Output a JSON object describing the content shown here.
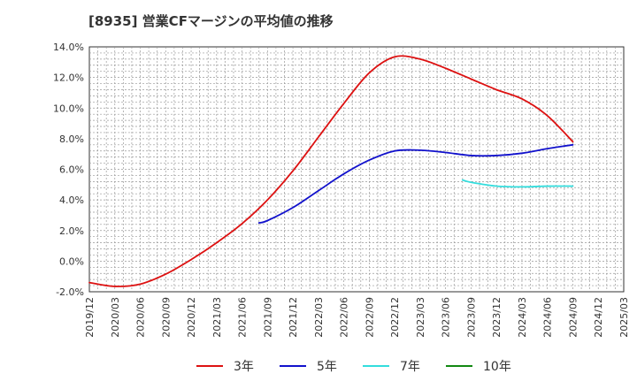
{
  "chart_data": {
    "type": "line",
    "title": "[8935]  営業CFマージンの平均値の推移",
    "xlabel": "",
    "ylabel": "",
    "ylim": [
      -2.0,
      14.0
    ],
    "yticks": [
      "-2.0%",
      "0.0%",
      "2.0%",
      "4.0%",
      "6.0%",
      "8.0%",
      "10.0%",
      "12.0%",
      "14.0%"
    ],
    "xticks": [
      "2019/12",
      "2020/03",
      "2020/06",
      "2020/09",
      "2020/12",
      "2021/03",
      "2021/06",
      "2021/09",
      "2021/12",
      "2022/03",
      "2022/06",
      "2022/09",
      "2022/12",
      "2023/03",
      "2023/06",
      "2023/09",
      "2023/12",
      "2024/03",
      "2024/06",
      "2024/09",
      "2024/12",
      "2025/03"
    ],
    "grid": true,
    "legend_position": "bottom",
    "series": [
      {
        "name": "3年",
        "color": "#dd1111",
        "points": [
          [
            "2019/12",
            -1.4
          ],
          [
            "2020/03",
            -1.65
          ],
          [
            "2020/06",
            -1.5
          ],
          [
            "2020/09",
            -0.85
          ],
          [
            "2020/12",
            0.1
          ],
          [
            "2021/03",
            1.2
          ],
          [
            "2021/06",
            2.45
          ],
          [
            "2021/09",
            4.0
          ],
          [
            "2021/12",
            5.9
          ],
          [
            "2022/03",
            8.1
          ],
          [
            "2022/06",
            10.3
          ],
          [
            "2022/09",
            12.3
          ],
          [
            "2022/12",
            13.35
          ],
          [
            "2023/03",
            13.2
          ],
          [
            "2023/06",
            12.6
          ],
          [
            "2023/09",
            11.9
          ],
          [
            "2023/12",
            11.2
          ],
          [
            "2024/03",
            10.6
          ],
          [
            "2024/06",
            9.5
          ],
          [
            "2024/09",
            7.8
          ]
        ]
      },
      {
        "name": "5年",
        "color": "#1111cc",
        "points": [
          [
            "2021/08",
            2.5
          ],
          [
            "2021/09",
            2.65
          ],
          [
            "2021/12",
            3.5
          ],
          [
            "2022/03",
            4.6
          ],
          [
            "2022/06",
            5.7
          ],
          [
            "2022/09",
            6.6
          ],
          [
            "2022/12",
            7.2
          ],
          [
            "2023/03",
            7.25
          ],
          [
            "2023/06",
            7.1
          ],
          [
            "2023/09",
            6.9
          ],
          [
            "2023/12",
            6.9
          ],
          [
            "2024/03",
            7.05
          ],
          [
            "2024/06",
            7.35
          ],
          [
            "2024/09",
            7.6
          ]
        ]
      },
      {
        "name": "7年",
        "color": "#33dddd",
        "points": [
          [
            "2023/08",
            5.3
          ],
          [
            "2023/09",
            5.15
          ],
          [
            "2023/12",
            4.9
          ],
          [
            "2024/03",
            4.85
          ],
          [
            "2024/06",
            4.9
          ],
          [
            "2024/09",
            4.9
          ]
        ]
      },
      {
        "name": "10年",
        "color": "#118811",
        "points": []
      }
    ]
  }
}
